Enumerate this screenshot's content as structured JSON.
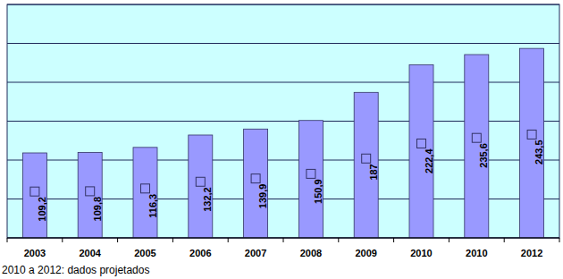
{
  "chart_data": {
    "type": "bar",
    "categories": [
      "2003",
      "2004",
      "2005",
      "2006",
      "2007",
      "2008",
      "2009",
      "2010",
      "2010",
      "2012"
    ],
    "series": [
      {
        "type": "bar",
        "color": "#9999ff",
        "values": [
          109.2,
          109.8,
          116.3,
          132.2,
          139.9,
          150.9,
          187,
          222.4,
          235.6,
          243.5
        ]
      },
      {
        "type": "line",
        "axis": "y2",
        "marker": "square",
        "line_style": "none",
        "color": "#9999ff",
        "values": [
          109.2,
          109.8,
          116.3,
          132.2,
          139.9,
          150.9,
          187,
          222.4,
          235.6,
          243.5
        ],
        "value_labels": [
          "109,2",
          "109,8",
          "116,3",
          "132,2",
          "139,9",
          "150,9",
          "187",
          "222,4",
          "235,6",
          "243,5"
        ]
      }
    ],
    "ylim": [
      0,
      300
    ],
    "yticks": [
      0,
      50,
      100,
      150,
      200,
      250,
      300
    ],
    "y2lim": [
      0,
      550
    ],
    "grid": true,
    "data_labels": true,
    "tick_labels": "x",
    "annotations": [
      "2010 a 2012: dados projetados"
    ]
  }
}
